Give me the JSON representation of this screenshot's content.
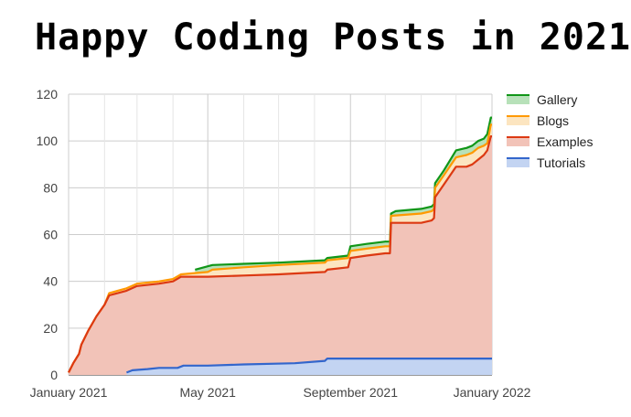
{
  "page": {
    "title": "Happy Coding Posts in 2021"
  },
  "chart_data": {
    "type": "area",
    "stacked": true,
    "title": "Happy Coding Posts in 2021",
    "x_axis": {
      "ticks": [
        "January 2021",
        "May 2021",
        "September 2021",
        "January 2022"
      ],
      "tick_dates": [
        "2021-01-01",
        "2021-05-01",
        "2021-09-01",
        "2022-01-01"
      ],
      "range": [
        "2021-01-01",
        "2022-01-01"
      ]
    },
    "y_axis": {
      "ticks": [
        0,
        20,
        40,
        60,
        80,
        100,
        120
      ],
      "range": [
        0,
        120
      ]
    },
    "grid": true,
    "legend_position": "right",
    "series": [
      {
        "name": "Tutorials",
        "color": "#3366cc",
        "fill": "#c3d4f2",
        "points": [
          [
            "2021-02-20",
            1
          ],
          [
            "2021-02-25",
            2
          ],
          [
            "2021-03-10",
            2.5
          ],
          [
            "2021-03-20",
            3
          ],
          [
            "2021-04-05",
            3
          ],
          [
            "2021-04-10",
            4
          ],
          [
            "2021-05-01",
            4
          ],
          [
            "2021-06-01",
            4.5
          ],
          [
            "2021-07-15",
            5
          ],
          [
            "2021-08-10",
            6
          ],
          [
            "2021-08-12",
            7
          ],
          [
            "2022-01-01",
            7
          ]
        ]
      },
      {
        "name": "Examples",
        "color": "#dc3912",
        "fill": "#f2c3b8",
        "points": [
          [
            "2021-01-01",
            1
          ],
          [
            "2021-01-05",
            5
          ],
          [
            "2021-01-10",
            9
          ],
          [
            "2021-01-12",
            13
          ],
          [
            "2021-01-18",
            19
          ],
          [
            "2021-01-25",
            25
          ],
          [
            "2021-02-01",
            30
          ],
          [
            "2021-02-05",
            34
          ],
          [
            "2021-02-20",
            36
          ],
          [
            "2021-03-01",
            38
          ],
          [
            "2021-03-20",
            39
          ],
          [
            "2021-04-01",
            40
          ],
          [
            "2021-04-08",
            42
          ],
          [
            "2021-05-01",
            42
          ],
          [
            "2021-06-01",
            42.5
          ],
          [
            "2021-07-01",
            43
          ],
          [
            "2021-08-10",
            44
          ],
          [
            "2021-08-12",
            45
          ],
          [
            "2021-08-30",
            46
          ],
          [
            "2021-09-01",
            50
          ],
          [
            "2021-09-15",
            51
          ],
          [
            "2021-10-01",
            52
          ],
          [
            "2021-10-05",
            52
          ],
          [
            "2021-10-06",
            65
          ],
          [
            "2021-11-01",
            65
          ],
          [
            "2021-11-10",
            66
          ],
          [
            "2021-11-12",
            67
          ],
          [
            "2021-11-13",
            76
          ],
          [
            "2021-11-20",
            81
          ],
          [
            "2021-12-01",
            89
          ],
          [
            "2021-12-10",
            89
          ],
          [
            "2021-12-15",
            90
          ],
          [
            "2021-12-20",
            92
          ],
          [
            "2021-12-25",
            94
          ],
          [
            "2021-12-28",
            96
          ],
          [
            "2021-12-31",
            102
          ],
          [
            "2022-01-01",
            102
          ]
        ]
      },
      {
        "name": "Blogs",
        "color": "#ff9900",
        "fill": "#fce5c0",
        "points": [
          [
            "2021-01-01",
            1
          ],
          [
            "2021-01-05",
            5
          ],
          [
            "2021-01-10",
            9
          ],
          [
            "2021-01-12",
            13
          ],
          [
            "2021-01-18",
            19
          ],
          [
            "2021-01-25",
            25
          ],
          [
            "2021-02-01",
            30
          ],
          [
            "2021-02-05",
            35
          ],
          [
            "2021-02-20",
            37
          ],
          [
            "2021-03-01",
            39
          ],
          [
            "2021-03-20",
            40
          ],
          [
            "2021-04-01",
            41
          ],
          [
            "2021-04-08",
            43
          ],
          [
            "2021-05-01",
            44
          ],
          [
            "2021-05-05",
            45
          ],
          [
            "2021-06-01",
            46
          ],
          [
            "2021-07-01",
            47
          ],
          [
            "2021-08-10",
            48
          ],
          [
            "2021-08-12",
            49
          ],
          [
            "2021-08-30",
            50
          ],
          [
            "2021-09-01",
            53
          ],
          [
            "2021-09-15",
            54
          ],
          [
            "2021-10-01",
            55
          ],
          [
            "2021-10-05",
            55
          ],
          [
            "2021-10-06",
            68
          ],
          [
            "2021-11-01",
            69
          ],
          [
            "2021-11-10",
            70
          ],
          [
            "2021-11-12",
            71
          ],
          [
            "2021-11-13",
            80
          ],
          [
            "2021-11-20",
            85
          ],
          [
            "2021-12-01",
            93
          ],
          [
            "2021-12-10",
            94
          ],
          [
            "2021-12-15",
            95
          ],
          [
            "2021-12-20",
            97
          ],
          [
            "2021-12-25",
            98
          ],
          [
            "2021-12-28",
            99
          ],
          [
            "2021-12-31",
            107
          ],
          [
            "2022-01-01",
            107
          ]
        ]
      },
      {
        "name": "Gallery",
        "color": "#109618",
        "fill": "#b7e1b9",
        "points": [
          [
            "2021-04-20",
            45
          ],
          [
            "2021-05-05",
            47
          ],
          [
            "2021-06-01",
            47.5
          ],
          [
            "2021-07-01",
            48
          ],
          [
            "2021-08-10",
            49
          ],
          [
            "2021-08-12",
            50
          ],
          [
            "2021-08-30",
            51
          ],
          [
            "2021-09-01",
            55
          ],
          [
            "2021-09-15",
            56
          ],
          [
            "2021-10-01",
            57
          ],
          [
            "2021-10-05",
            57
          ],
          [
            "2021-10-06",
            69
          ],
          [
            "2021-10-10",
            70
          ],
          [
            "2021-11-01",
            71
          ],
          [
            "2021-11-10",
            72
          ],
          [
            "2021-11-12",
            73
          ],
          [
            "2021-11-13",
            82
          ],
          [
            "2021-11-20",
            87
          ],
          [
            "2021-12-01",
            96
          ],
          [
            "2021-12-10",
            97
          ],
          [
            "2021-12-15",
            98
          ],
          [
            "2021-12-20",
            100
          ],
          [
            "2021-12-25",
            101
          ],
          [
            "2021-12-28",
            103
          ],
          [
            "2021-12-31",
            110
          ],
          [
            "2022-01-01",
            110
          ]
        ]
      }
    ],
    "legend": [
      "Gallery",
      "Blogs",
      "Examples",
      "Tutorials"
    ]
  }
}
